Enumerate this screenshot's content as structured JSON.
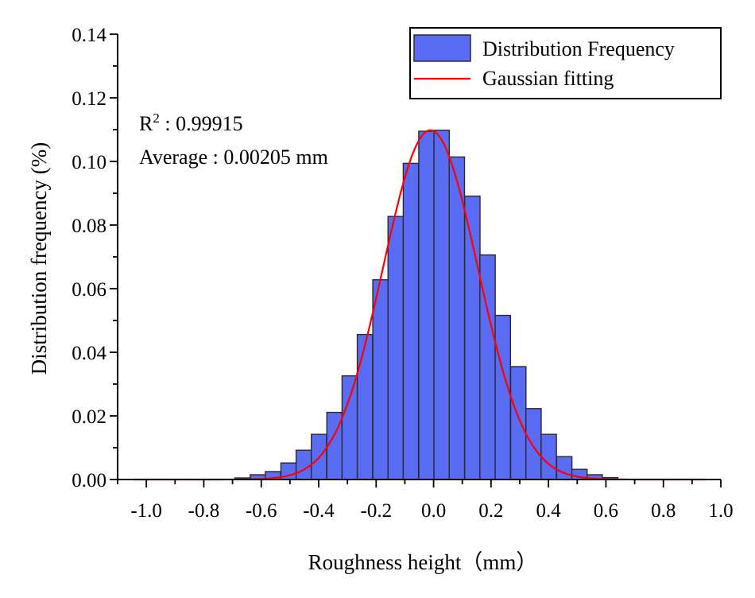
{
  "chart_data": {
    "type": "bar",
    "xlabel": "Roughness height（mm）",
    "ylabel": "Distribution frequency (%)",
    "xlim": [
      -1.1,
      1.0
    ],
    "ylim": [
      0,
      0.14
    ],
    "x_ticks": [
      "-1.0",
      "-0.8",
      "-0.6",
      "-0.4",
      "-0.2",
      "0.0",
      "0.2",
      "0.4",
      "0.6",
      "0.8",
      "1.0"
    ],
    "y_ticks": [
      "0.00",
      "0.02",
      "0.04",
      "0.06",
      "0.08",
      "0.10",
      "0.12",
      "0.14"
    ],
    "series": [
      {
        "name": "Distribution Frequency",
        "kind": "bar",
        "bin_width": 0.0533,
        "x": [
          -0.665,
          -0.612,
          -0.559,
          -0.505,
          -0.452,
          -0.399,
          -0.345,
          -0.292,
          -0.239,
          -0.185,
          -0.132,
          -0.079,
          -0.025,
          0.028,
          0.081,
          0.135,
          0.188,
          0.241,
          0.295,
          0.348,
          0.401,
          0.455,
          0.508,
          0.561,
          0.615
        ],
        "values": [
          0.0005,
          0.0015,
          0.0025,
          0.0052,
          0.0092,
          0.0142,
          0.0211,
          0.0326,
          0.0456,
          0.0628,
          0.0827,
          0.0994,
          0.1095,
          0.1098,
          0.1014,
          0.0891,
          0.0706,
          0.0516,
          0.0355,
          0.0223,
          0.0142,
          0.0072,
          0.0032,
          0.0015,
          0.0006
        ]
      },
      {
        "name": "Gaussian fitting",
        "kind": "line",
        "mean": -0.011,
        "sigma": 0.165,
        "peak": 0.1098,
        "x_range": [
          -1.045,
          0.95
        ]
      }
    ],
    "legend": {
      "position": "top-right",
      "entries": [
        "Distribution Frequency",
        "Gaussian fitting"
      ]
    },
    "annotations": {
      "r2_prefix": "R",
      "r2_sup": "2",
      "r2_value": " : 0.99915",
      "average": "Average : 0.00205 mm"
    },
    "grid": false,
    "colors": {
      "bar_fill": "#5b6cf4",
      "bar_stroke": "#2a2a2a",
      "line": "#ff0000",
      "axis": "#000000"
    }
  }
}
